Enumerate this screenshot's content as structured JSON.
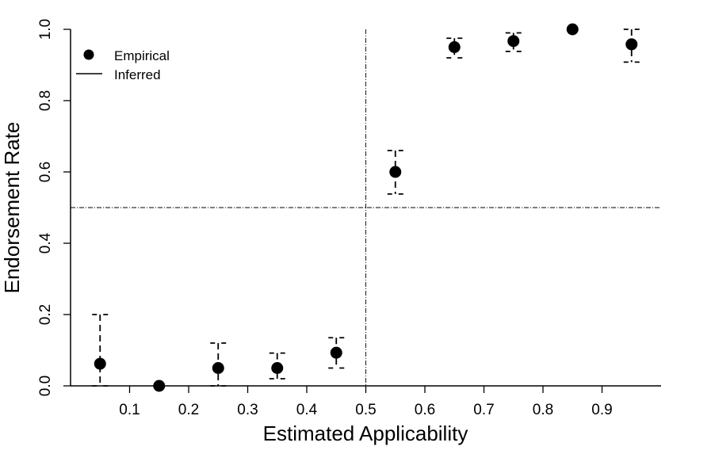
{
  "chart_data": {
    "type": "scatter",
    "xlabel": "Estimated Applicability",
    "ylabel": "Endorsement Rate",
    "xlim": [
      0,
      1
    ],
    "ylim": [
      0,
      1
    ],
    "x_ticks": [
      0.1,
      0.2,
      0.3,
      0.4,
      0.5,
      0.6,
      0.7,
      0.8,
      0.9
    ],
    "x_tick_labels": [
      "0.1",
      "0.2",
      "0.3",
      "0.4",
      "0.5",
      "0.6",
      "0.7",
      "0.8",
      "0.9"
    ],
    "y_ticks": [
      0.0,
      0.2,
      0.4,
      0.6,
      0.8,
      1.0
    ],
    "y_tick_labels": [
      "0.0",
      "0.2",
      "0.4",
      "0.6",
      "0.8",
      "1.0"
    ],
    "reference_lines": {
      "vertical_x": 0.5,
      "horizontal_y": 0.5
    },
    "legend": {
      "position": "top-left",
      "entries": [
        {
          "label": "Empirical",
          "marker": "filled-circle"
        },
        {
          "label": "Inferred",
          "marker": "line"
        }
      ]
    },
    "series": [
      {
        "name": "Empirical",
        "points": [
          {
            "x": 0.05,
            "y": 0.062,
            "lo": 0.0,
            "hi": 0.2
          },
          {
            "x": 0.15,
            "y": 0.0,
            "lo": 0.0,
            "hi": 0.0
          },
          {
            "x": 0.25,
            "y": 0.05,
            "lo": 0.0,
            "hi": 0.12
          },
          {
            "x": 0.35,
            "y": 0.05,
            "lo": 0.02,
            "hi": 0.092
          },
          {
            "x": 0.45,
            "y": 0.093,
            "lo": 0.05,
            "hi": 0.135
          },
          {
            "x": 0.55,
            "y": 0.6,
            "lo": 0.538,
            "hi": 0.66
          },
          {
            "x": 0.65,
            "y": 0.95,
            "lo": 0.92,
            "hi": 0.975
          },
          {
            "x": 0.75,
            "y": 0.967,
            "lo": 0.938,
            "hi": 0.99
          },
          {
            "x": 0.85,
            "y": 1.0,
            "lo": 1.0,
            "hi": 1.0
          },
          {
            "x": 0.95,
            "y": 0.958,
            "lo": 0.908,
            "hi": 1.0
          }
        ]
      }
    ],
    "grid": false
  }
}
